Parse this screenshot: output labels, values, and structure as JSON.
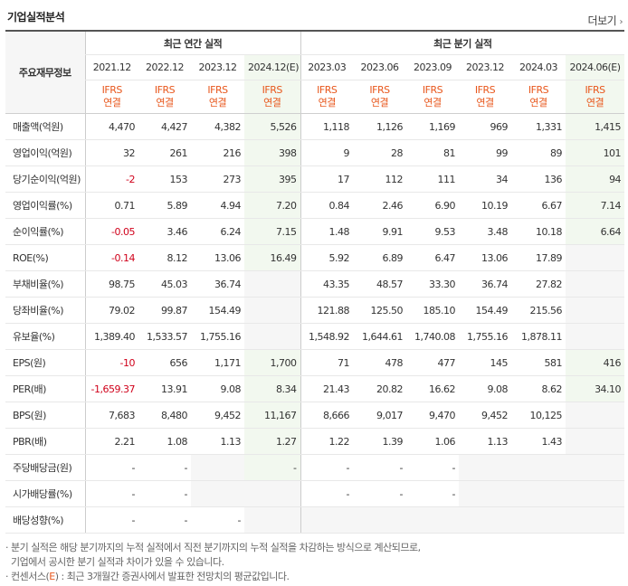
{
  "title": "기업실적분석",
  "more": "더보기",
  "more_icon": "chevron-right-icon",
  "header": {
    "row_label": "주요재무정보",
    "annual_group": "최근 연간 실적",
    "quarter_group": "최근 분기 실적",
    "periods": [
      "2021.12",
      "2022.12",
      "2023.12",
      "2024.12(E)",
      "2023.03",
      "2023.06",
      "2023.09",
      "2023.12",
      "2024.03",
      "2024.06(E)"
    ],
    "ifrs_top": "IFRS",
    "ifrs_bottom": "연결"
  },
  "rows": [
    {
      "label": "매출액(억원)",
      "values": [
        "4,470",
        "4,427",
        "4,382",
        "5,526",
        "1,118",
        "1,126",
        "1,169",
        "969",
        "1,331",
        "1,415"
      ]
    },
    {
      "label": "영업이익(억원)",
      "values": [
        "32",
        "261",
        "216",
        "398",
        "9",
        "28",
        "81",
        "99",
        "89",
        "101"
      ]
    },
    {
      "label": "당기순이익(억원)",
      "values": [
        "-2",
        "153",
        "273",
        "395",
        "17",
        "112",
        "111",
        "34",
        "136",
        "94"
      ]
    },
    {
      "label": "영업이익률(%)",
      "values": [
        "0.71",
        "5.89",
        "4.94",
        "7.20",
        "0.84",
        "2.46",
        "6.90",
        "10.19",
        "6.67",
        "7.14"
      ]
    },
    {
      "label": "순이익률(%)",
      "values": [
        "-0.05",
        "3.46",
        "6.24",
        "7.15",
        "1.48",
        "9.91",
        "9.53",
        "3.48",
        "10.18",
        "6.64"
      ]
    },
    {
      "label": "ROE(%)",
      "values": [
        "-0.14",
        "8.12",
        "13.06",
        "16.49",
        "5.92",
        "6.89",
        "6.47",
        "13.06",
        "17.89",
        ""
      ]
    },
    {
      "label": "부채비율(%)",
      "values": [
        "98.75",
        "45.03",
        "36.74",
        "",
        "43.35",
        "48.57",
        "33.30",
        "36.74",
        "27.82",
        ""
      ]
    },
    {
      "label": "당좌비율(%)",
      "values": [
        "79.02",
        "99.87",
        "154.49",
        "",
        "121.88",
        "125.50",
        "185.10",
        "154.49",
        "215.56",
        ""
      ]
    },
    {
      "label": "유보율(%)",
      "values": [
        "1,389.40",
        "1,533.57",
        "1,755.16",
        "",
        "1,548.92",
        "1,644.61",
        "1,740.08",
        "1,755.16",
        "1,878.11",
        ""
      ]
    },
    {
      "label": "EPS(원)",
      "values": [
        "-10",
        "656",
        "1,171",
        "1,700",
        "71",
        "478",
        "477",
        "145",
        "581",
        "416"
      ]
    },
    {
      "label": "PER(배)",
      "values": [
        "-1,659.37",
        "13.91",
        "9.08",
        "8.34",
        "21.43",
        "20.82",
        "16.62",
        "9.08",
        "8.62",
        "34.10"
      ]
    },
    {
      "label": "BPS(원)",
      "values": [
        "7,683",
        "8,480",
        "9,452",
        "11,167",
        "8,666",
        "9,017",
        "9,470",
        "9,452",
        "10,125",
        ""
      ]
    },
    {
      "label": "PBR(배)",
      "values": [
        "2.21",
        "1.08",
        "1.13",
        "1.27",
        "1.22",
        "1.39",
        "1.06",
        "1.13",
        "1.43",
        ""
      ]
    },
    {
      "label": "주당배당금(원)",
      "values": [
        "-",
        "-",
        "",
        "-",
        "-",
        "-",
        "-",
        "",
        "",
        ""
      ]
    },
    {
      "label": "시가배당률(%)",
      "values": [
        "-",
        "-",
        "",
        "",
        "-",
        "-",
        "-",
        "",
        "",
        ""
      ]
    },
    {
      "label": "배당성향(%)",
      "values": [
        "-",
        "-",
        "-",
        "",
        "",
        "",
        "",
        "",
        "",
        ""
      ]
    }
  ],
  "notes": {
    "line1": "분기 실적은 해당 분기까지의 누적 실적에서 직전 분기까지의 누적 실적을 차감하는 방식으로 계산되므로,",
    "line2": "기업에서 공시한 분기 실적과 차이가 있을 수 있습니다.",
    "line3_prefix": "컨센서스(",
    "line3_e": "E",
    "line3_suffix": ") : 최근 3개월간 증권사에서 발표한 전망치의 평균값입니다."
  },
  "colors": {
    "accent": "#e8571c",
    "negative": "#d0021b",
    "estimate_bg": "#f2f8ef"
  }
}
